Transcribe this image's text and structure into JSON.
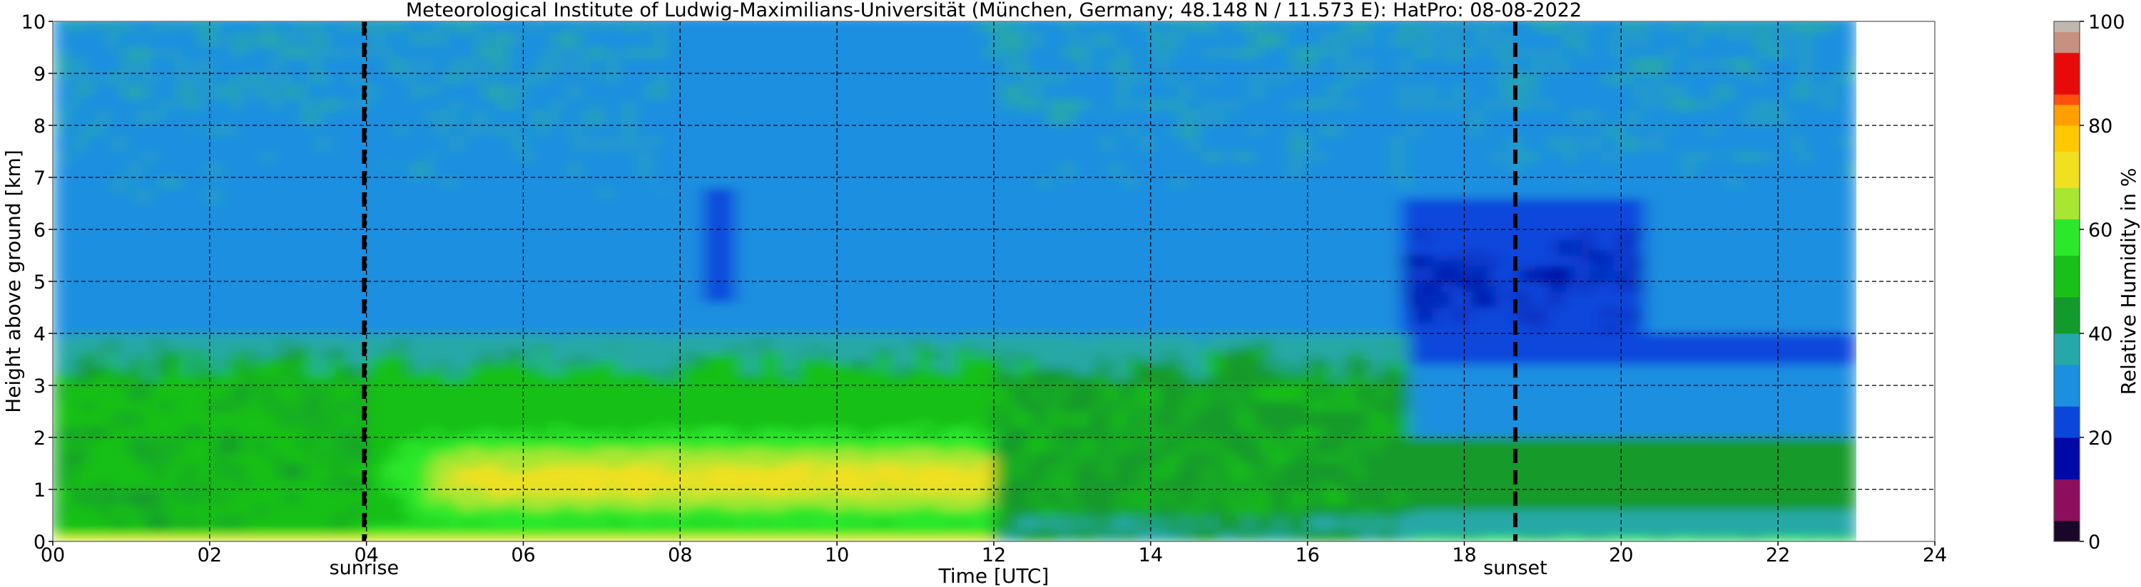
{
  "chart_data": {
    "type": "heatmap",
    "title": "Meteorological Institute of Ludwig-Maximilians-Universität (München, Germany; 48.148 N / 11.573 E):    HatPro: 08-08-2022",
    "xlabel": "Time [UTC]",
    "ylabel": "Height above ground [km]",
    "xlim": [
      0,
      24
    ],
    "ylim": [
      0,
      10
    ],
    "data_extent_x": [
      0,
      23
    ],
    "x_ticks": [
      "00",
      "02",
      "04",
      "06",
      "08",
      "10",
      "12",
      "14",
      "16",
      "18",
      "20",
      "22",
      "24"
    ],
    "x_tick_values": [
      0,
      2,
      4,
      6,
      8,
      10,
      12,
      14,
      16,
      18,
      20,
      22,
      24
    ],
    "y_ticks": [
      "0",
      "1",
      "2",
      "3",
      "4",
      "5",
      "6",
      "7",
      "8",
      "9",
      "10"
    ],
    "y_tick_values": [
      0,
      1,
      2,
      3,
      4,
      5,
      6,
      7,
      8,
      9,
      10
    ],
    "grid": true,
    "events": [
      {
        "label": "sunrise",
        "time": 3.97
      },
      {
        "label": "sunset",
        "time": 18.65
      }
    ],
    "colorbar": {
      "label": "Relative Humidity in %",
      "range": [
        0,
        100
      ],
      "ticks": [
        "0",
        "20",
        "40",
        "60",
        "80",
        "100"
      ],
      "tick_values": [
        0,
        20,
        40,
        60,
        80,
        100
      ],
      "levels": [
        {
          "from": 0,
          "to": 4,
          "color": "#1a0626"
        },
        {
          "from": 4,
          "to": 12,
          "color": "#8c0e5c"
        },
        {
          "from": 12,
          "to": 20,
          "color": "#0008a8"
        },
        {
          "from": 20,
          "to": 26,
          "color": "#0a46dc"
        },
        {
          "from": 26,
          "to": 34,
          "color": "#1c8fe0"
        },
        {
          "from": 34,
          "to": 40,
          "color": "#27a8a8"
        },
        {
          "from": 40,
          "to": 47,
          "color": "#139a2c"
        },
        {
          "from": 47,
          "to": 55,
          "color": "#18c018"
        },
        {
          "from": 55,
          "to": 62,
          "color": "#2ce82c"
        },
        {
          "from": 62,
          "to": 68,
          "color": "#a8e632"
        },
        {
          "from": 68,
          "to": 75,
          "color": "#f0e020"
        },
        {
          "from": 75,
          "to": 80,
          "color": "#ffc800"
        },
        {
          "from": 80,
          "to": 84,
          "color": "#ffa000"
        },
        {
          "from": 84,
          "to": 86,
          "color": "#ff5010"
        },
        {
          "from": 86,
          "to": 94,
          "color": "#e80a0a"
        },
        {
          "from": 94,
          "to": 98,
          "color": "#c89080"
        },
        {
          "from": 98,
          "to": 100,
          "color": "#c0b8b0"
        }
      ]
    },
    "profiles_summary": [
      {
        "period": "00-04",
        "layers": [
          {
            "height_km": [
              0,
              0.3
            ],
            "rh_percent": 55
          },
          {
            "height_km": [
              0.3,
              3.0
            ],
            "rh_percent": 50
          },
          {
            "height_km": [
              3.0,
              4.0
            ],
            "rh_percent": 40
          },
          {
            "height_km": [
              4.0,
              10
            ],
            "rh_percent": 32
          }
        ]
      },
      {
        "period": "04-12",
        "layers": [
          {
            "height_km": [
              0,
              0.5
            ],
            "rh_percent": 55
          },
          {
            "height_km": [
              0.5,
              2.0
            ],
            "rh_percent": 68
          },
          {
            "height_km": [
              2.0,
              3.2
            ],
            "rh_percent": 52
          },
          {
            "height_km": [
              3.2,
              4.2
            ],
            "rh_percent": 40
          },
          {
            "height_km": [
              4.2,
              10
            ],
            "rh_percent": 28
          }
        ]
      },
      {
        "period": "12-17",
        "layers": [
          {
            "height_km": [
              0,
              0.5
            ],
            "rh_percent": 40
          },
          {
            "height_km": [
              0.5,
              3.1
            ],
            "rh_percent": 48
          },
          {
            "height_km": [
              3.1,
              4.0
            ],
            "rh_percent": 38
          },
          {
            "height_km": [
              4.0,
              10
            ],
            "rh_percent": 29
          }
        ]
      },
      {
        "period": "17-23",
        "layers": [
          {
            "height_km": [
              0,
              0.6
            ],
            "rh_percent": 37
          },
          {
            "height_km": [
              0.6,
              2.0
            ],
            "rh_percent": 44
          },
          {
            "height_km": [
              2.0,
              3.5
            ],
            "rh_percent": 28
          },
          {
            "height_km": [
              3.5,
              6.5
            ],
            "rh_percent": 20
          },
          {
            "height_km": [
              6.5,
              10
            ],
            "rh_percent": 29
          }
        ]
      }
    ]
  }
}
